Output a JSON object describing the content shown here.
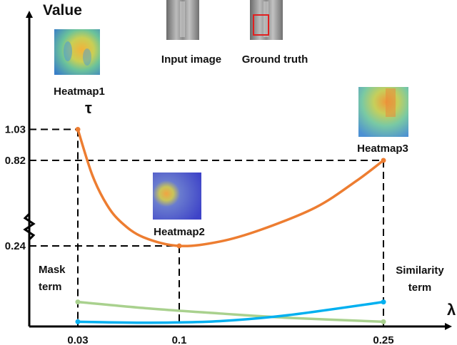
{
  "chart_data": {
    "type": "line",
    "ylabel": "Value",
    "xlabel": "λ",
    "x_ticks": [
      0.03,
      0.1,
      0.25
    ],
    "x_tick_labels": [
      "0.03",
      "0.1",
      "0.25"
    ],
    "y_ticks": [
      0.24,
      0.82,
      1.03
    ],
    "y_tick_labels": [
      "0.24",
      "0.82",
      "1.03"
    ],
    "y_axis_break": true,
    "grid": false,
    "series": [
      {
        "name": "τ",
        "color": "#ed7d31",
        "x": [
          0.03,
          0.04,
          0.05,
          0.06,
          0.075,
          0.1,
          0.13,
          0.16,
          0.2,
          0.23,
          0.25
        ],
        "values": [
          1.03,
          0.72,
          0.52,
          0.4,
          0.3,
          0.24,
          0.27,
          0.35,
          0.5,
          0.68,
          0.82
        ]
      },
      {
        "name": "Mask term",
        "color": "#a9d18e",
        "x": [
          0.03,
          0.08,
          0.13,
          0.18,
          0.25
        ],
        "values": [
          0.07,
          0.05,
          0.035,
          0.022,
          0.01
        ]
      },
      {
        "name": "Similarity term",
        "color": "#00b0f0",
        "x": [
          0.03,
          0.08,
          0.13,
          0.18,
          0.25
        ],
        "values": [
          0.01,
          0.007,
          0.012,
          0.03,
          0.07
        ]
      }
    ],
    "annotations": [
      {
        "text": "Heatmap1",
        "colormap": "jet",
        "hot_region": "left"
      },
      {
        "text": "Heatmap2",
        "colormap": "blue",
        "hot_region": "left"
      },
      {
        "text": "Heatmap3",
        "colormap": "jet",
        "hot_region": "right"
      }
    ],
    "insets": [
      {
        "text": "Input image"
      },
      {
        "text": "Ground truth",
        "box_color": "#e02020"
      }
    ]
  }
}
